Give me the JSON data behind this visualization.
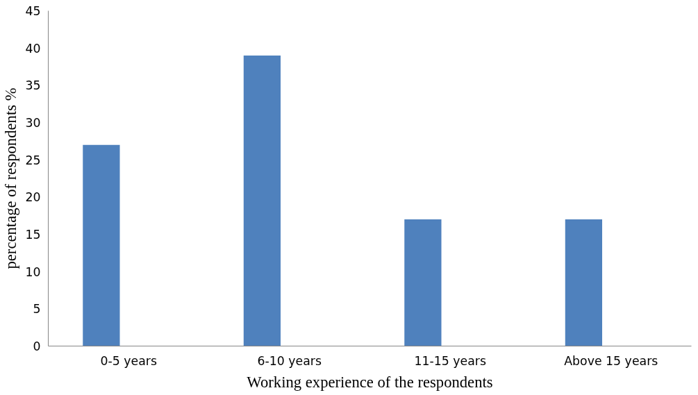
{
  "chart_data": {
    "type": "bar",
    "xlabel": "Working experience of the respondents",
    "ylabel": "percentage of respondents %",
    "categories": [
      "0-5 years",
      "6-10 years",
      "11-15 years",
      "Above 15 years"
    ],
    "values": [
      27,
      39,
      17,
      17
    ],
    "color": "#4f81bd",
    "ylim": [
      0,
      45
    ],
    "yticks": [
      0,
      5,
      10,
      15,
      20,
      25,
      30,
      35,
      40,
      45
    ],
    "grid": false
  }
}
